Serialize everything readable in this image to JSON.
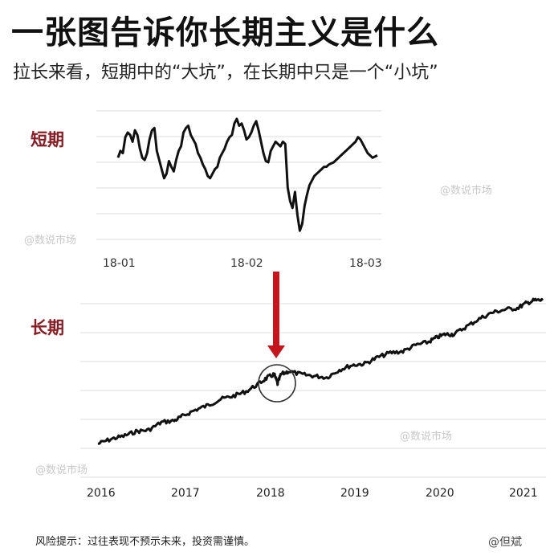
{
  "header": {
    "title": "一张图告诉你长期主义是什么",
    "subtitle": "拉长来看，短期中的“大坑”，在长期中只是一个“小坑”"
  },
  "footer": {
    "disclaimer": "风险提示：过往表现不预示未来，投资需谨慎。",
    "handle": "@但斌"
  },
  "watermark_text": "@数说市场",
  "colors": {
    "line": "#111111",
    "grid": "#dcdcdc",
    "arrow": "#c4161c",
    "label": "#8b1c24"
  },
  "chart_data": [
    {
      "type": "line",
      "label": "短期",
      "x_ticks": [
        "18-01",
        "18-02",
        "18-03"
      ],
      "grid": true,
      "series": [
        {
          "values": [
            0.66,
            0.72,
            0.7,
            0.84,
            0.88,
            0.86,
            0.8,
            0.9,
            0.86,
            0.74,
            0.66,
            0.64,
            0.7,
            0.82,
            0.9,
            0.92,
            0.72,
            0.64,
            0.56,
            0.48,
            0.52,
            0.63,
            0.58,
            0.54,
            0.64,
            0.72,
            0.76,
            0.88,
            0.92,
            0.94,
            0.86,
            0.82,
            0.78,
            0.7,
            0.66,
            0.6,
            0.56,
            0.5,
            0.48,
            0.52,
            0.56,
            0.58,
            0.66,
            0.7,
            0.74,
            0.8,
            0.84,
            0.86,
            0.96,
            1.0,
            0.94,
            0.96,
            0.9,
            0.82,
            0.84,
            0.88,
            0.94,
            0.98,
            0.9,
            0.8,
            0.7,
            0.63,
            0.62,
            0.72,
            0.76,
            0.8,
            0.78,
            0.76,
            0.8,
            0.78,
            0.4,
            0.28,
            0.22,
            0.36,
            0.16,
            0.02,
            0.08,
            0.24,
            0.34,
            0.42,
            0.46,
            0.5,
            0.52,
            0.54,
            0.56,
            0.58,
            0.58,
            0.6,
            0.61,
            0.62,
            0.64,
            0.66,
            0.68,
            0.7,
            0.72,
            0.74,
            0.76,
            0.78,
            0.8,
            0.84,
            0.82,
            0.78,
            0.74,
            0.7,
            0.68,
            0.66,
            0.67,
            0.68
          ]
        }
      ]
    },
    {
      "type": "line",
      "label": "长期",
      "x_ticks": [
        "2016",
        "2017",
        "2018",
        "2019",
        "2020",
        "2021"
      ],
      "x_range": [
        2016.0,
        2021.25
      ],
      "grid": true,
      "annotation": "circled dip near 2018 with downward red arrow from the short-term chart",
      "series": [
        {
          "x": [
            2016.0,
            2016.15,
            2016.3,
            2016.45,
            2016.6,
            2016.75,
            2016.9,
            2017.0,
            2017.15,
            2017.3,
            2017.45,
            2017.6,
            2017.75,
            2017.9,
            2018.0,
            2018.08,
            2018.12,
            2018.16,
            2018.25,
            2018.4,
            2018.55,
            2018.7,
            2018.85,
            2019.0,
            2019.15,
            2019.3,
            2019.45,
            2019.6,
            2019.75,
            2019.9,
            2020.0,
            2020.1,
            2020.2,
            2020.35,
            2020.5,
            2020.65,
            2020.8,
            2020.95,
            2021.05,
            2021.15,
            2021.25
          ],
          "values": [
            0.05,
            0.08,
            0.1,
            0.13,
            0.14,
            0.19,
            0.2,
            0.23,
            0.27,
            0.3,
            0.34,
            0.36,
            0.39,
            0.44,
            0.48,
            0.5,
            0.44,
            0.5,
            0.52,
            0.5,
            0.49,
            0.48,
            0.53,
            0.56,
            0.57,
            0.61,
            0.64,
            0.65,
            0.69,
            0.71,
            0.74,
            0.76,
            0.76,
            0.81,
            0.86,
            0.9,
            0.92,
            0.93,
            0.96,
            0.98,
            0.98
          ]
        }
      ]
    }
  ]
}
